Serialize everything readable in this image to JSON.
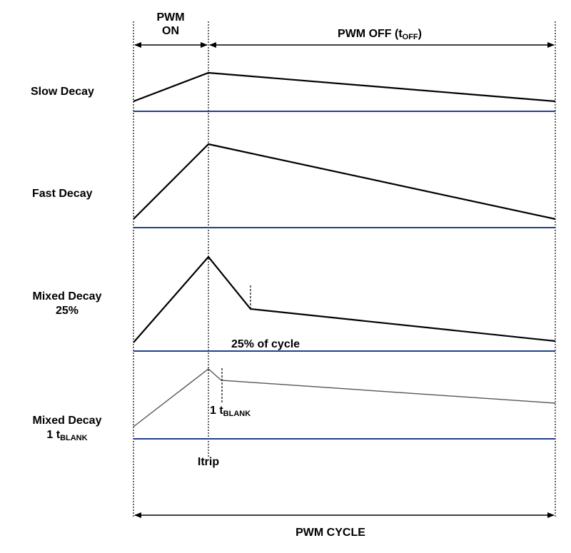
{
  "labels": {
    "pwm_on_line1": "PWM",
    "pwm_on_line2": "ON",
    "pwm_off_main": "PWM OFF (t",
    "pwm_off_sub": "OFF",
    "pwm_off_close": ")",
    "slow_decay": "Slow Decay",
    "fast_decay": "Fast Decay",
    "mixed_decay_25_line1": "Mixed Decay",
    "mixed_decay_25_line2": "25%",
    "mixed_decay_blank_line1": "Mixed Decay",
    "mixed_decay_blank_line2_main": "1 t",
    "mixed_decay_blank_line2_sub": "BLANK",
    "percent_of_cycle": "25% of cycle",
    "tblank_marker_main": "1 t",
    "tblank_marker_sub": "BLANK",
    "itrip": "Itrip",
    "pwm_cycle": "PWM CYCLE"
  },
  "colors": {
    "baseline": "#1f3f8f",
    "waveform": "#000000",
    "waveform_light": "#555555",
    "guide": "#000000"
  }
}
